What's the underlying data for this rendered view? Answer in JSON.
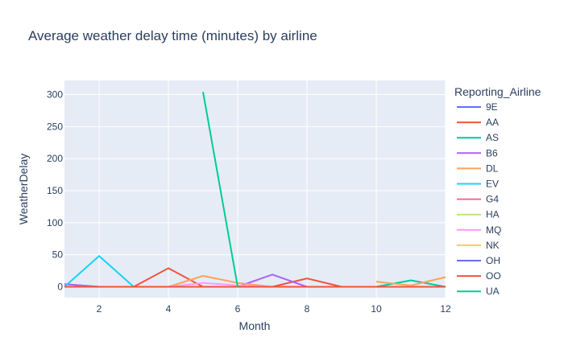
{
  "chart_data": {
    "type": "line",
    "title": "Average weather delay time (minutes) by airline",
    "xlabel": "Month",
    "ylabel": "WeatherDelay",
    "xlim": [
      1,
      12
    ],
    "ylim": [
      -17,
      322
    ],
    "x_ticks": [
      2,
      4,
      6,
      8,
      10,
      12
    ],
    "y_ticks": [
      0,
      50,
      100,
      150,
      200,
      250,
      300
    ],
    "grid": true,
    "legend_title": "Reporting_Airline",
    "legend_position": "right",
    "plot_background": "#e5ecf6",
    "series": [
      {
        "name": "9E",
        "color": "#636efa",
        "x": [
          1,
          2,
          3,
          4,
          5,
          6,
          7,
          8,
          9,
          10,
          11,
          12
        ],
        "y": [
          4,
          0,
          0,
          0,
          0,
          0,
          0,
          0,
          0,
          0,
          0,
          0
        ]
      },
      {
        "name": "AA",
        "color": "#EF553B",
        "x": [
          1,
          2,
          3,
          4,
          5,
          6,
          7,
          8,
          9,
          10,
          11,
          12
        ],
        "y": [
          0,
          0,
          0,
          29,
          0,
          0,
          0,
          13,
          0,
          0,
          0,
          0
        ]
      },
      {
        "name": "AS",
        "color": "#00cc96",
        "x": [
          1,
          2,
          3,
          4,
          5,
          6,
          7,
          8,
          9,
          10,
          11,
          12
        ],
        "y": [
          0,
          0,
          0,
          0,
          0,
          0,
          0,
          0,
          0,
          0,
          10,
          0
        ]
      },
      {
        "name": "B6",
        "color": "#ab63fa",
        "x": [
          1,
          2,
          3,
          4,
          5,
          6,
          7,
          8,
          9,
          10,
          11,
          12
        ],
        "y": [
          4,
          0,
          0,
          0,
          0,
          0,
          19,
          0,
          0,
          0,
          0,
          0
        ]
      },
      {
        "name": "DL",
        "color": "#FFA15A",
        "x": [
          4,
          5,
          6,
          7,
          8,
          9
        ],
        "y": [
          0,
          17,
          6,
          0,
          0,
          0
        ]
      },
      {
        "name": "EV",
        "color": "#19d3f3",
        "x": [
          1,
          2,
          3,
          4,
          5,
          6,
          7,
          8,
          9,
          10,
          11,
          12
        ],
        "y": [
          0,
          48,
          0,
          0,
          0,
          0,
          0,
          0,
          0,
          0,
          0,
          0
        ]
      },
      {
        "name": "G4",
        "color": "#FF6692",
        "x": [
          1,
          2,
          3,
          4,
          5,
          6,
          7,
          8,
          9,
          10,
          11,
          12
        ],
        "y": [
          0,
          0,
          0,
          0,
          0,
          0,
          0,
          0,
          0,
          0,
          0,
          0
        ]
      },
      {
        "name": "HA",
        "color": "#B6E880",
        "x": [
          1,
          2,
          3,
          4,
          5,
          6,
          7,
          8,
          9,
          10,
          11,
          12
        ],
        "y": [
          0,
          0,
          0,
          0,
          0,
          0,
          0,
          0,
          0,
          0,
          0,
          0
        ]
      },
      {
        "name": "MQ",
        "color": "#FF97FF",
        "x": [
          1,
          2,
          3,
          4,
          5,
          6,
          7,
          8,
          9,
          10,
          11,
          12
        ],
        "y": [
          0,
          0,
          0,
          0,
          6,
          2,
          0,
          0,
          0,
          0,
          0,
          0
        ]
      },
      {
        "name": "NK",
        "color": "#FECB52",
        "x": [
          1,
          2,
          3,
          4,
          5,
          6,
          7,
          8,
          9,
          10,
          11,
          12
        ],
        "y": [
          0,
          0,
          0,
          0,
          0,
          0,
          0,
          0,
          0,
          0,
          0,
          0
        ]
      },
      {
        "name": "OH",
        "color": "#636efa",
        "x": [
          1,
          2,
          3,
          4,
          5,
          6,
          7,
          8,
          9,
          10,
          11,
          12
        ],
        "y": [
          0,
          0,
          0,
          0,
          0,
          0,
          0,
          0,
          0,
          0,
          0,
          0
        ]
      },
      {
        "name": "OO",
        "color": "#EF553B",
        "x": [
          1,
          2,
          3,
          4,
          5,
          6,
          7,
          8,
          9,
          10,
          11,
          12
        ],
        "y": [
          0,
          0,
          0,
          0,
          0,
          0,
          0,
          0,
          0,
          0,
          0,
          0
        ]
      },
      {
        "name": "UA",
        "color": "#00cc96",
        "x": [
          5,
          6
        ],
        "y": [
          304,
          0
        ]
      },
      {
        "name": "DL",
        "color": "#FFA15A",
        "x": [
          10,
          11,
          12
        ],
        "y": [
          8,
          2,
          15
        ],
        "showlegend": false
      }
    ]
  }
}
